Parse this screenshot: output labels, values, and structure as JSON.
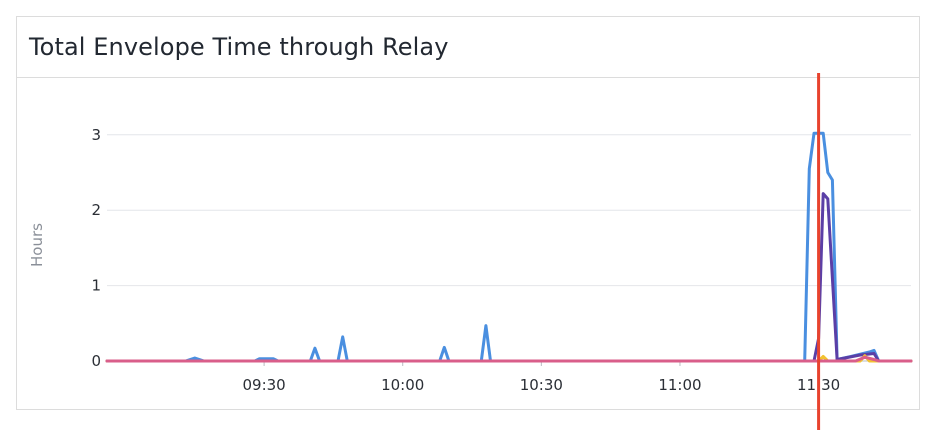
{
  "panel": {
    "title": "Total Envelope Time through Relay"
  },
  "chart_data": {
    "type": "line",
    "title": "Total Envelope Time through Relay",
    "xlabel": "",
    "ylabel": "Hours",
    "x_ticks": [
      "09:30",
      "10:00",
      "10:30",
      "11:00",
      "11:30"
    ],
    "y_ticks": [
      0,
      1,
      2,
      3
    ],
    "xlim": [
      "08:56",
      "11:50"
    ],
    "ylim": [
      0,
      3.7
    ],
    "grid": true,
    "legend": "none",
    "marker": {
      "x": "11:30",
      "color": "#e8432e"
    },
    "series": [
      {
        "color": "#4a8fe0",
        "points": [
          [
            "08:56",
            0
          ],
          [
            "09:13",
            0
          ],
          [
            "09:15",
            0.04
          ],
          [
            "09:17",
            0
          ],
          [
            "09:28",
            0
          ],
          [
            "09:29",
            0.03
          ],
          [
            "09:32",
            0.03
          ],
          [
            "09:33",
            0
          ],
          [
            "09:40",
            0
          ],
          [
            "09:41",
            0.17
          ],
          [
            "09:42",
            0
          ],
          [
            "09:46",
            0
          ],
          [
            "09:47",
            0.32
          ],
          [
            "09:48",
            0
          ],
          [
            "10:08",
            0
          ],
          [
            "10:09",
            0.18
          ],
          [
            "10:10",
            0
          ],
          [
            "10:17",
            0
          ],
          [
            "10:18",
            0.47
          ],
          [
            "10:19",
            0
          ],
          [
            "11:27",
            0
          ],
          [
            "11:28",
            2.55
          ],
          [
            "11:29",
            3.02
          ],
          [
            "11:31",
            3.02
          ],
          [
            "11:32",
            2.5
          ],
          [
            "11:33",
            2.4
          ],
          [
            "11:34",
            0.02
          ],
          [
            "11:37",
            0.06
          ],
          [
            "11:41",
            0.12
          ],
          [
            "11:42",
            0.14
          ],
          [
            "11:43",
            0
          ],
          [
            "11:50",
            0
          ]
        ]
      },
      {
        "color": "#5b3fa6",
        "points": [
          [
            "08:56",
            0
          ],
          [
            "11:29",
            0
          ],
          [
            "11:30",
            0.3
          ],
          [
            "11:31",
            2.22
          ],
          [
            "11:32",
            2.15
          ],
          [
            "11:34",
            0.02
          ],
          [
            "11:39",
            0.08
          ],
          [
            "11:42",
            0.1
          ],
          [
            "11:43",
            0
          ],
          [
            "11:50",
            0
          ]
        ]
      },
      {
        "color": "#f2c230",
        "points": [
          [
            "08:56",
            0
          ],
          [
            "11:30",
            0
          ],
          [
            "11:31",
            0.06
          ],
          [
            "11:32",
            0
          ],
          [
            "11:39",
            0
          ],
          [
            "11:40",
            0.07
          ],
          [
            "11:41",
            0
          ],
          [
            "11:50",
            0
          ]
        ]
      },
      {
        "color": "#d95e8a",
        "points": [
          [
            "08:56",
            0
          ],
          [
            "11:38",
            0
          ],
          [
            "11:40",
            0.05
          ],
          [
            "11:42",
            0.02
          ],
          [
            "11:43",
            0
          ],
          [
            "11:50",
            0
          ]
        ]
      }
    ]
  }
}
